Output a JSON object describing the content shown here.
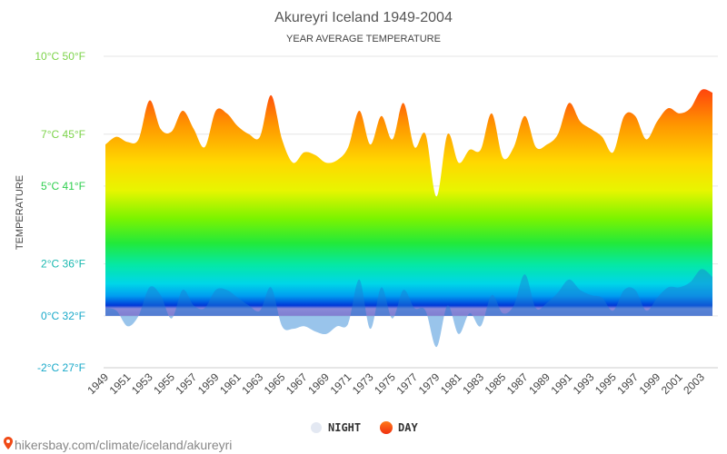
{
  "chart_data": {
    "type": "area",
    "title": "Akureyri Iceland 1949-2004",
    "subtitle": "YEAR AVERAGE TEMPERATURE",
    "ylabel": "TEMPERATURE",
    "xlabel": "",
    "ylim": [
      -2,
      10
    ],
    "yticks": [
      {
        "value": 10,
        "label": "10°C 50°F",
        "color": "#7cd34a"
      },
      {
        "value": 7,
        "label": "7°C 45°F",
        "color": "#7cd34a"
      },
      {
        "value": 5,
        "label": "5°C 41°F",
        "color": "#2fcf4f"
      },
      {
        "value": 2,
        "label": "2°C 36°F",
        "color": "#1bb9b0"
      },
      {
        "value": 0,
        "label": "0°C 32°F",
        "color": "#18a9c9"
      },
      {
        "value": -2,
        "label": "-2°C 27°F",
        "color": "#18a9c9"
      }
    ],
    "x_tick_labels": [
      "1949",
      "1951",
      "1953",
      "1955",
      "1957",
      "1959",
      "1961",
      "1963",
      "1965",
      "1967",
      "1969",
      "1971",
      "1973",
      "1975",
      "1977",
      "1979",
      "1981",
      "1983",
      "1985",
      "1987",
      "1989",
      "1991",
      "1993",
      "1995",
      "1997",
      "1999",
      "2001",
      "2003"
    ],
    "x": [
      1949,
      1950,
      1951,
      1952,
      1953,
      1954,
      1955,
      1956,
      1957,
      1958,
      1959,
      1960,
      1961,
      1962,
      1963,
      1964,
      1965,
      1966,
      1967,
      1968,
      1969,
      1970,
      1971,
      1972,
      1973,
      1974,
      1975,
      1976,
      1977,
      1978,
      1979,
      1980,
      1981,
      1982,
      1983,
      1984,
      1985,
      1986,
      1987,
      1988,
      1989,
      1990,
      1991,
      1992,
      1993,
      1994,
      1995,
      1996,
      1997,
      1998,
      1999,
      2000,
      2001,
      2002,
      2003,
      2004
    ],
    "series": [
      {
        "name": "NIGHT",
        "color": "#dfe6f2",
        "values": [
          0.3,
          0.2,
          -0.4,
          0.0,
          1.1,
          0.8,
          -0.1,
          1.0,
          0.4,
          0.3,
          1.0,
          1.0,
          0.7,
          0.4,
          0.2,
          1.1,
          -0.4,
          -0.5,
          -0.4,
          -0.6,
          -0.7,
          -0.4,
          -0.3,
          1.4,
          -0.5,
          1.1,
          -0.1,
          1.0,
          0.3,
          0.2,
          -1.2,
          0.4,
          -0.7,
          0.1,
          -0.4,
          0.8,
          0.1,
          0.4,
          1.6,
          0.3,
          0.5,
          0.9,
          1.4,
          1.0,
          0.8,
          0.7,
          0.2,
          1.0,
          1.0,
          0.2,
          0.7,
          1.1,
          1.1,
          1.3,
          1.8,
          1.5
        ]
      },
      {
        "name": "DAY",
        "color": "#f04a16",
        "values": [
          6.6,
          6.9,
          6.7,
          6.8,
          8.3,
          7.2,
          7.1,
          7.9,
          7.2,
          6.5,
          7.9,
          7.8,
          7.3,
          7.0,
          6.9,
          8.5,
          6.8,
          5.9,
          6.3,
          6.2,
          5.9,
          6.0,
          6.5,
          7.9,
          6.6,
          7.7,
          6.8,
          8.2,
          6.5,
          7.0,
          4.6,
          7.0,
          5.9,
          6.4,
          6.4,
          7.8,
          6.1,
          6.5,
          7.7,
          6.5,
          6.6,
          7.0,
          8.2,
          7.5,
          7.2,
          6.9,
          6.3,
          7.7,
          7.7,
          6.8,
          7.5,
          8.0,
          7.8,
          8.0,
          8.7,
          8.6
        ]
      }
    ],
    "legend": {
      "placement": "bottom-center",
      "items": [
        {
          "label": "NIGHT",
          "color": "#dfe6f2"
        },
        {
          "label": "DAY",
          "color": "#f04a16"
        }
      ]
    },
    "grid": true
  },
  "watermark": {
    "text": "hikersbay.com/climate/iceland/akureyri",
    "icon": "map-pin-icon",
    "icon_color": "#f04a16"
  }
}
